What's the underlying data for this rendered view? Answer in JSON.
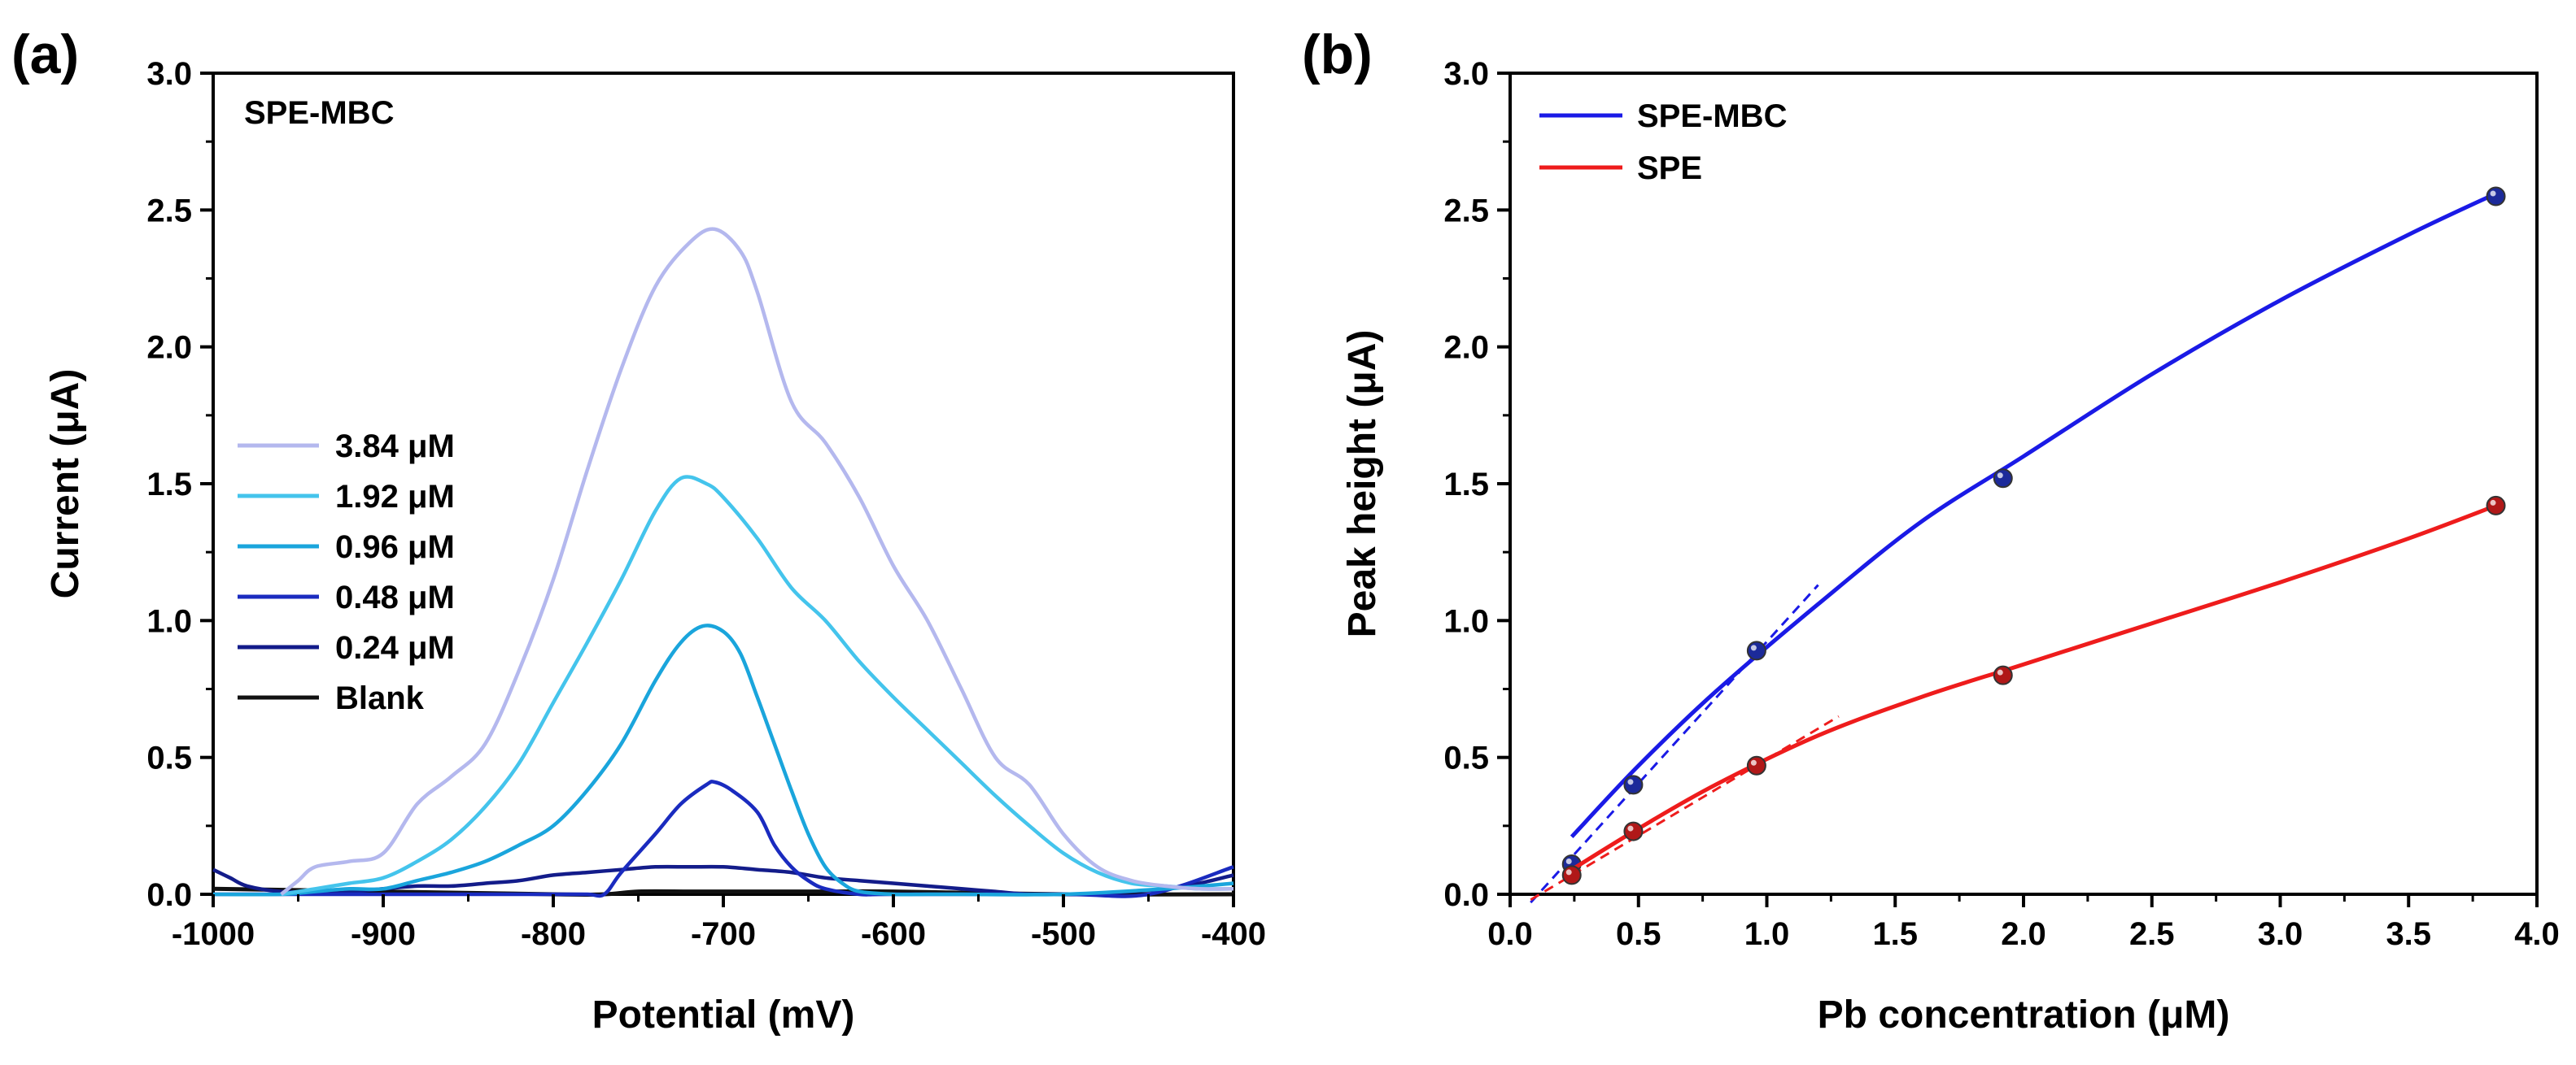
{
  "chart_data": [
    {
      "panel": "(a)",
      "type": "line",
      "annotation": "SPE-MBC",
      "xlabel": "Potential (mV)",
      "ylabel": "Current (μA)",
      "xlim": [
        -1000,
        -400
      ],
      "ylim": [
        0,
        3.0
      ],
      "xticks": [
        "-1000",
        "-900",
        "-800",
        "-700",
        "-600",
        "-500",
        "-400"
      ],
      "yticks": [
        "0.0",
        "0.5",
        "1.0",
        "1.5",
        "2.0",
        "2.5",
        "3.0"
      ],
      "legend_position": "center-left",
      "series": [
        {
          "name": "3.84 μM",
          "color": "#b4b8ee",
          "x": [
            -960,
            -950,
            -940,
            -920,
            -900,
            -880,
            -860,
            -840,
            -820,
            -800,
            -780,
            -760,
            -740,
            -720,
            -705,
            -690,
            -680,
            -660,
            -640,
            -620,
            -600,
            -580,
            -560,
            -540,
            -520,
            -500,
            -480,
            -460,
            -440,
            -420,
            -400
          ],
          "y": [
            0.0,
            0.05,
            0.1,
            0.12,
            0.15,
            0.33,
            0.43,
            0.55,
            0.82,
            1.15,
            1.55,
            1.92,
            2.22,
            2.38,
            2.43,
            2.35,
            2.2,
            1.8,
            1.65,
            1.45,
            1.2,
            1.0,
            0.75,
            0.5,
            0.4,
            0.22,
            0.1,
            0.05,
            0.03,
            0.02,
            0.02
          ]
        },
        {
          "name": "1.92 μM",
          "color": "#44c4ec",
          "x": [
            -960,
            -940,
            -920,
            -900,
            -880,
            -860,
            -840,
            -820,
            -800,
            -780,
            -760,
            -740,
            -725,
            -710,
            -700,
            -680,
            -660,
            -640,
            -620,
            -600,
            -580,
            -560,
            -540,
            -520,
            -500,
            -480,
            -460,
            -440,
            -420,
            -400
          ],
          "y": [
            0.0,
            0.02,
            0.04,
            0.06,
            0.12,
            0.2,
            0.32,
            0.48,
            0.7,
            0.92,
            1.15,
            1.4,
            1.52,
            1.5,
            1.45,
            1.3,
            1.12,
            1.0,
            0.85,
            0.72,
            0.6,
            0.48,
            0.36,
            0.25,
            0.15,
            0.08,
            0.04,
            0.03,
            0.02,
            0.02
          ]
        },
        {
          "name": "0.96 μM",
          "color": "#1aa5dc",
          "x": [
            -1000,
            -960,
            -940,
            -920,
            -900,
            -880,
            -860,
            -840,
            -820,
            -800,
            -780,
            -760,
            -740,
            -725,
            -712,
            -700,
            -690,
            -680,
            -670,
            -660,
            -650,
            -640,
            -630,
            -620,
            -600,
            -580,
            -560,
            -500,
            -440,
            -400
          ],
          "y": [
            0.0,
            0.0,
            0.01,
            0.02,
            0.02,
            0.05,
            0.08,
            0.12,
            0.18,
            0.25,
            0.38,
            0.55,
            0.78,
            0.92,
            0.98,
            0.96,
            0.88,
            0.72,
            0.55,
            0.38,
            0.22,
            0.1,
            0.04,
            0.01,
            0.0,
            0.0,
            0.0,
            0.0,
            0.02,
            0.04
          ]
        },
        {
          "name": "0.48 μM",
          "color": "#1a2bbf",
          "x": [
            -1000,
            -960,
            -800,
            -780,
            -770,
            -760,
            -740,
            -725,
            -710,
            -705,
            -695,
            -680,
            -670,
            -660,
            -650,
            -640,
            -620,
            -600,
            -500,
            -450,
            -400
          ],
          "y": [
            0.0,
            0.0,
            0.0,
            0.0,
            0.0,
            0.08,
            0.22,
            0.33,
            0.4,
            0.41,
            0.38,
            0.3,
            0.18,
            0.1,
            0.05,
            0.02,
            0.0,
            0.0,
            0.0,
            0.0,
            0.1
          ]
        },
        {
          "name": "0.24 μM",
          "color": "#131c8a",
          "x": [
            -1000,
            -990,
            -980,
            -960,
            -940,
            -920,
            -900,
            -880,
            -860,
            -840,
            -820,
            -800,
            -780,
            -760,
            -740,
            -720,
            -700,
            -680,
            -660,
            -640,
            -620,
            -600,
            -580,
            -560,
            -540,
            -520,
            -500,
            -480,
            -460,
            -440,
            -420,
            -400
          ],
          "y": [
            0.09,
            0.06,
            0.03,
            0.01,
            0.01,
            0.01,
            0.02,
            0.03,
            0.03,
            0.04,
            0.05,
            0.07,
            0.08,
            0.09,
            0.1,
            0.1,
            0.1,
            0.09,
            0.08,
            0.06,
            0.05,
            0.04,
            0.03,
            0.02,
            0.01,
            0.0,
            0.0,
            0.0,
            0.01,
            0.02,
            0.04,
            0.07
          ]
        },
        {
          "name": "Blank",
          "color": "#111111",
          "x": [
            -1000,
            -900,
            -800,
            -770,
            -750,
            -720,
            -700,
            -680,
            -640,
            -600,
            -500,
            -400
          ],
          "y": [
            0.02,
            0.01,
            0.0,
            0.0,
            0.01,
            0.01,
            0.01,
            0.01,
            0.01,
            0.01,
            0.0,
            0.0
          ]
        }
      ]
    },
    {
      "panel": "(b)",
      "type": "scatter",
      "xlabel": "Pb concentration (μM)",
      "ylabel": "Peak height (μA)",
      "xlim": [
        0,
        4.0
      ],
      "ylim": [
        0,
        3.0
      ],
      "xticks": [
        "0.0",
        "0.5",
        "1.0",
        "1.5",
        "2.0",
        "2.5",
        "3.0",
        "3.5",
        "4.0"
      ],
      "yticks": [
        "0.0",
        "0.5",
        "1.0",
        "1.5",
        "2.0",
        "2.5",
        "3.0"
      ],
      "legend_position": "top-left",
      "series": [
        {
          "name": "SPE-MBC",
          "color": "#1a1ae6",
          "marker_color": "#1c2a9a",
          "x": [
            0.24,
            0.48,
            0.96,
            1.92,
            3.84
          ],
          "y": [
            0.11,
            0.4,
            0.89,
            1.52,
            2.55
          ],
          "fit_x": [
            0.24,
            0.5,
            0.8,
            1.2,
            1.6,
            2.0,
            2.5,
            3.0,
            3.5,
            3.84
          ],
          "fit_y": [
            0.21,
            0.47,
            0.74,
            1.06,
            1.36,
            1.6,
            1.9,
            2.17,
            2.41,
            2.56
          ],
          "linear_x": [
            0.08,
            1.2
          ],
          "linear_y": [
            -0.03,
            1.13
          ]
        },
        {
          "name": "SPE",
          "color": "#ee1c1c",
          "marker_color": "#b01818",
          "x": [
            0.24,
            0.48,
            0.96,
            1.92,
            3.84
          ],
          "y": [
            0.07,
            0.23,
            0.47,
            0.8,
            1.42
          ],
          "fit_x": [
            0.24,
            0.5,
            0.8,
            1.2,
            1.6,
            2.0,
            2.5,
            3.0,
            3.5,
            3.84
          ],
          "fit_y": [
            0.09,
            0.24,
            0.4,
            0.58,
            0.72,
            0.84,
            0.99,
            1.14,
            1.3,
            1.42
          ],
          "linear_x": [
            0.08,
            1.28
          ],
          "linear_y": [
            -0.02,
            0.65
          ]
        }
      ]
    }
  ]
}
